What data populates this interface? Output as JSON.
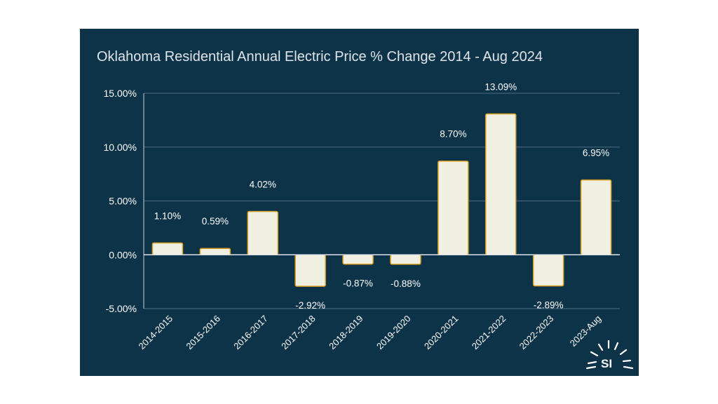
{
  "chart_data": {
    "type": "bar",
    "title": "Oklahoma Residential Annual Electric Price % Change 2014 - Aug 2024",
    "xlabel": "",
    "ylabel": "",
    "ylim": [
      -5,
      15
    ],
    "yticks": [
      15,
      10,
      5,
      0,
      -5
    ],
    "ytick_labels": [
      "15.00%",
      "10.00%",
      "5.00%",
      "0.00%",
      "-5.00%"
    ],
    "categories": [
      "2014-2015",
      "2015-2016",
      "2016-2017",
      "2017-2018",
      "2018-2019",
      "2019-2020",
      "2020-2021",
      "2021-2022",
      "2022-2023",
      "2023-Aug"
    ],
    "values": [
      1.1,
      0.59,
      4.02,
      -2.92,
      -0.87,
      -0.88,
      8.7,
      13.09,
      -2.89,
      6.95
    ],
    "data_labels": [
      "1.10%",
      "0.59%",
      "4.02%",
      "-2.92%",
      "-0.87%",
      "-0.88%",
      "8.70%",
      "13.09%",
      "-2.89%",
      "6.95%"
    ],
    "grid": true,
    "colors": {
      "background": "#0d3349",
      "bar_fill": "#efefe2",
      "bar_edge": "#d9a021",
      "text": "#ffffff",
      "grid": "#4f6d80"
    }
  },
  "logo": {
    "text": "SI"
  }
}
